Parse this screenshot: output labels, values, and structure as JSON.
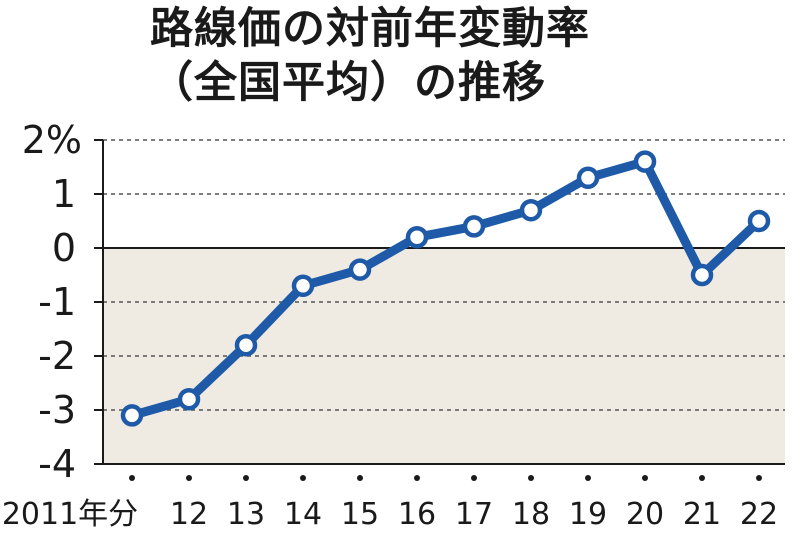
{
  "title_line1": "路線価の対前年変動率",
  "title_line2": "（全国平均）の推移",
  "colors": {
    "line": "#1e5aa8",
    "marker_fill": "#ffffff",
    "grid": "#555555",
    "negative_band": "#efebe3",
    "axis": "#1a1a1a"
  },
  "chart_data": {
    "type": "line",
    "title": "路線価の対前年変動率（全国平均）の推移",
    "xlabel": "",
    "ylabel": "",
    "categories": [
      "2011年分",
      "12",
      "13",
      "14",
      "15",
      "16",
      "17",
      "18",
      "19",
      "20",
      "21",
      "22"
    ],
    "y_tick_labels": [
      "2%",
      "1",
      "0",
      "-1",
      "-2",
      "-3",
      "-4"
    ],
    "y_ticks": [
      2,
      1,
      0,
      -1,
      -2,
      -3,
      -4
    ],
    "ylim": [
      -4,
      2
    ],
    "grid": "dashed horizontal",
    "shaded_region": "below zero",
    "series": [
      {
        "values": [
          -3.1,
          -2.8,
          -1.8,
          -0.7,
          -0.4,
          0.2,
          0.4,
          0.7,
          1.3,
          1.6,
          -0.5,
          0.5
        ]
      }
    ]
  }
}
